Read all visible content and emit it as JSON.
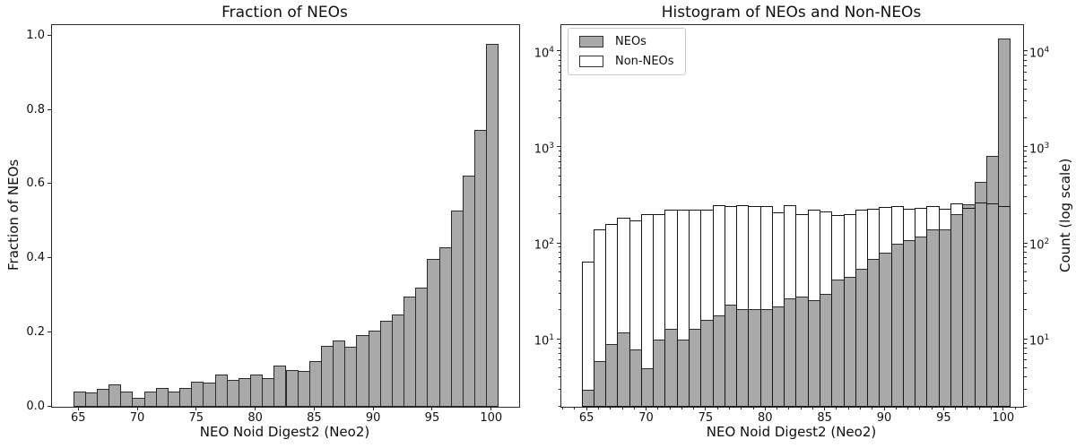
{
  "figure": {
    "background": "#ffffff"
  },
  "colors": {
    "neo_fill": "#a9a9a9",
    "bar_edge": "#2b2b2b",
    "outline_bar_edge": "#161616",
    "axis": "#2a2a2a",
    "tick": "#262626",
    "legend_border": "#c9c9c9"
  },
  "chart_data": [
    {
      "id": "fraction-of-neos",
      "type": "bar",
      "title": "Fraction of NEOs",
      "xlabel": "NEO Noid Digest2 (Neo2)",
      "ylabel": "Fraction of NEOs",
      "grid": false,
      "x": [
        65,
        66,
        67,
        68,
        69,
        70,
        71,
        72,
        73,
        74,
        75,
        76,
        77,
        78,
        79,
        80,
        81,
        82,
        83,
        84,
        85,
        86,
        87,
        88,
        89,
        90,
        91,
        92,
        93,
        94,
        95,
        96,
        97,
        98,
        99,
        100
      ],
      "values": [
        0.04,
        0.038,
        0.049,
        0.061,
        0.042,
        0.024,
        0.042,
        0.052,
        0.042,
        0.052,
        0.067,
        0.066,
        0.087,
        0.073,
        0.078,
        0.088,
        0.078,
        0.112,
        0.099,
        0.096,
        0.124,
        0.165,
        0.18,
        0.162,
        0.193,
        0.206,
        0.232,
        0.25,
        0.297,
        0.322,
        0.399,
        0.431,
        0.53,
        0.625,
        0.746,
        0.98
      ],
      "bar_width": 1,
      "xlim": [
        62.7,
        102.3
      ],
      "ylim": [
        0,
        1.03
      ],
      "xticks": [
        65,
        70,
        75,
        80,
        85,
        90,
        95,
        100
      ],
      "yticks": [
        0.0,
        0.2,
        0.4,
        0.6,
        0.8,
        1.0
      ],
      "ytick_labels": [
        "0.0",
        "0.2",
        "0.4",
        "0.6",
        "0.8",
        "1.0"
      ]
    },
    {
      "id": "histogram-neos-non-neos",
      "type": "bar",
      "yscale": "log",
      "title": "Histogram of NEOs and Non-NEOs",
      "xlabel": "NEO Noid Digest2 (Neo2)",
      "ylabel_right": "Count (log scale)",
      "grid": false,
      "legend_position": "upper-left",
      "x": [
        65,
        66,
        67,
        68,
        69,
        70,
        71,
        72,
        73,
        74,
        75,
        76,
        77,
        78,
        79,
        80,
        81,
        82,
        83,
        84,
        85,
        86,
        87,
        88,
        89,
        90,
        91,
        92,
        93,
        94,
        95,
        96,
        97,
        98,
        99,
        100
      ],
      "series": [
        {
          "name": "NEOs",
          "style": "filled",
          "values": [
            3,
            6,
            9,
            12,
            8,
            5,
            10,
            13,
            10,
            13,
            16,
            18,
            23,
            21,
            21,
            21,
            22,
            27,
            28,
            26,
            30,
            42,
            45,
            55,
            70,
            80,
            100,
            110,
            120,
            140,
            142,
            205,
            260,
            440,
            820,
            13800
          ]
        },
        {
          "name": "Non-NEOs",
          "style": "outline",
          "values": [
            65,
            140,
            160,
            187,
            175,
            205,
            205,
            228,
            228,
            228,
            228,
            254,
            245,
            254,
            248,
            245,
            212,
            254,
            205,
            228,
            215,
            198,
            205,
            225,
            231,
            242,
            245,
            233,
            236,
            245,
            230,
            264,
            235,
            270,
            265,
            248
          ]
        }
      ],
      "bar_width": 1,
      "xlim": [
        62.8,
        101.6
      ],
      "ylim": [
        2,
        19000
      ],
      "xticks": [
        65,
        70,
        75,
        80,
        85,
        90,
        95,
        100
      ],
      "x_minor_step": 1,
      "ytick_exponents": [
        1,
        2,
        3,
        4
      ]
    }
  ]
}
